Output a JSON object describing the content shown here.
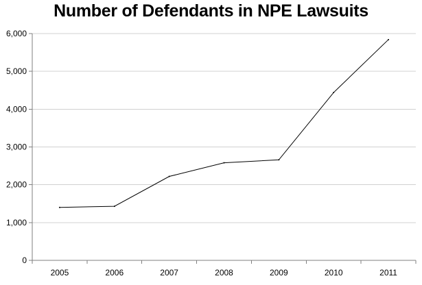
{
  "chart_data": {
    "type": "line",
    "title": "Number of Defendants in NPE Lawsuits",
    "xlabel": "",
    "ylabel": "",
    "categories": [
      "2005",
      "2006",
      "2007",
      "2008",
      "2009",
      "2010",
      "2011"
    ],
    "series": [
      {
        "values": [
          1400,
          1430,
          2220,
          2580,
          2660,
          4440,
          5840
        ]
      }
    ],
    "ylim": [
      0,
      6000
    ],
    "y_ticks": [
      "0",
      "1,000",
      "2,000",
      "3,000",
      "4,000",
      "5,000",
      "6,000"
    ],
    "grid": true,
    "legend": "none",
    "colors": {
      "line": "#000000",
      "grid": "#d0d0d0",
      "axis": "#7f7f7f"
    }
  }
}
